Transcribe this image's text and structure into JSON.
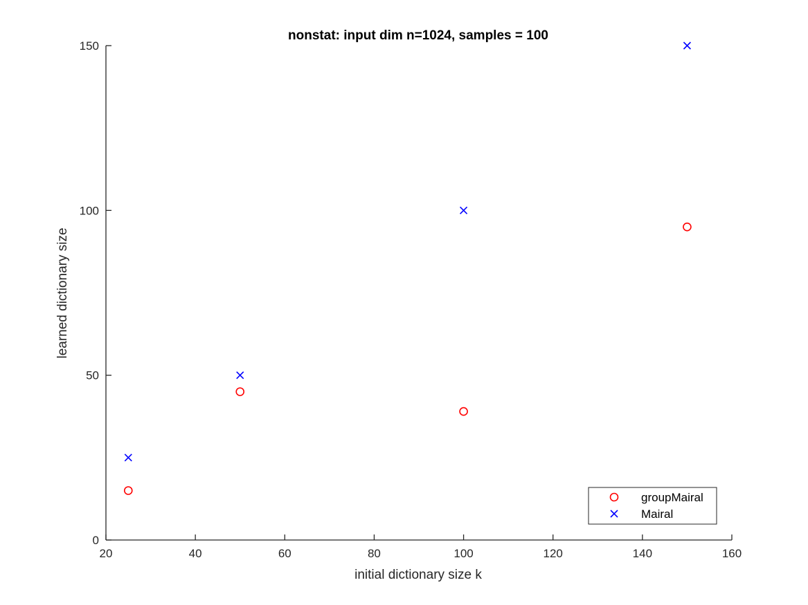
{
  "chart_data": {
    "type": "scatter",
    "title": "nonstat: input dim n=1024, samples = 100",
    "xlabel": "initial dictionary size k",
    "ylabel": "learned dictionary size",
    "xlim": [
      20,
      160
    ],
    "ylim": [
      0,
      150
    ],
    "xticks": [
      20,
      40,
      60,
      80,
      100,
      120,
      140,
      160
    ],
    "yticks": [
      0,
      50,
      100,
      150
    ],
    "grid": false,
    "legend_position": "bottom-right",
    "series": [
      {
        "name": "groupMairal",
        "marker": "circle",
        "color": "#ff0000",
        "x": [
          25,
          50,
          100,
          150
        ],
        "y": [
          15,
          45,
          39,
          95
        ]
      },
      {
        "name": "Mairal",
        "marker": "x",
        "color": "#0000ff",
        "x": [
          25,
          50,
          100,
          150
        ],
        "y": [
          25,
          50,
          100,
          150
        ]
      }
    ]
  }
}
